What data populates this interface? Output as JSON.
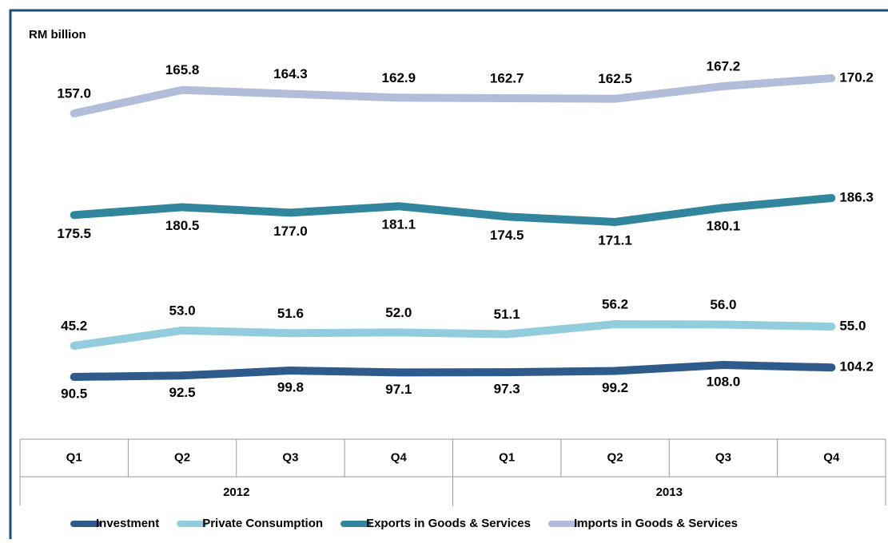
{
  "chart_data": {
    "type": "line",
    "y_label": "RM billion",
    "categories": [
      "Q1",
      "Q2",
      "Q3",
      "Q4",
      "Q1",
      "Q2",
      "Q3",
      "Q4"
    ],
    "category_groups": [
      "2012",
      "2013"
    ],
    "series": [
      {
        "name": "Investment",
        "color": "#2f5b8c",
        "values": [
          90.5,
          92.5,
          99.8,
          97.1,
          97.3,
          99.2,
          108.0,
          104.2
        ],
        "value_labels": [
          "90.5",
          "92.5",
          "99.8",
          "97.1",
          "97.3",
          "99.2",
          "108.0",
          "104.2"
        ]
      },
      {
        "name": "Private Consumption",
        "color": "#93cddd",
        "values": [
          45.2,
          53.0,
          51.6,
          52.0,
          51.1,
          56.2,
          56.0,
          55.0
        ],
        "value_labels": [
          "45.2",
          "53.0",
          "51.6",
          "52.0",
          "51.1",
          "56.2",
          "56.0",
          "55.0"
        ]
      },
      {
        "name": "Exports in Goods & Services",
        "color": "#31859c",
        "values": [
          175.5,
          180.5,
          177.0,
          181.1,
          174.5,
          171.1,
          180.1,
          186.3
        ],
        "value_labels": [
          "175.5",
          "180.5",
          "177.0",
          "181.1",
          "174.5",
          "171.1",
          "180.1",
          "186.3"
        ]
      },
      {
        "name": "Imports in Goods & Services",
        "color": "#b1bdd9",
        "values": [
          157.0,
          165.8,
          164.3,
          162.9,
          162.7,
          162.5,
          167.2,
          170.2
        ],
        "value_labels": [
          "157.0",
          "165.8",
          "164.3",
          "162.9",
          "162.7",
          "162.5",
          "167.2",
          "170.2"
        ]
      }
    ],
    "legend": "bottom"
  }
}
